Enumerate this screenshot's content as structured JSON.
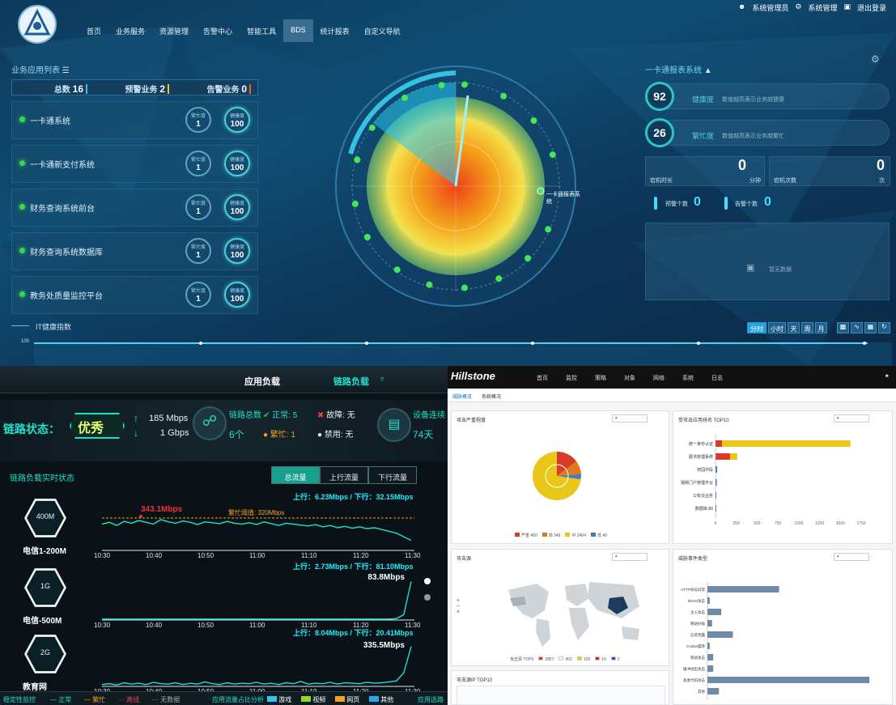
{
  "top": {
    "nav": [
      "首页",
      "业务服务",
      "资源管理",
      "告警中心",
      "智能工具",
      "BDS",
      "统计报表",
      "自定义导航"
    ],
    "nav_active": "BDS",
    "user": {
      "admin": "系统管理员",
      "settings": "系统管理",
      "logout": "退出登录"
    },
    "left_title": "业务应用列表",
    "summary": {
      "total_label": "总数",
      "total": "16",
      "warn_label": "预警业务",
      "warn": "2",
      "alarm_label": "告警业务",
      "alarm": "0"
    },
    "systems": [
      {
        "name": "一卡通系统",
        "busy_label": "繁忙度",
        "busy": "1",
        "health_label": "健康度",
        "health": "100"
      },
      {
        "name": "一卡通新支付系统",
        "busy_label": "繁忙度",
        "busy": "1",
        "health_label": "健康度",
        "health": "100"
      },
      {
        "name": "财务查询系统前台",
        "busy_label": "繁忙度",
        "busy": "1",
        "health_label": "健康度",
        "health": "100"
      },
      {
        "name": "财务查询系统数据库",
        "busy_label": "繁忙度",
        "busy": "1",
        "health_label": "健康度",
        "health": "100"
      },
      {
        "name": "教务处质量监控平台",
        "busy_label": "繁忙度",
        "busy": "1",
        "health_label": "健康度",
        "health": "100"
      }
    ],
    "radar_target_label": "一卡通报表系统",
    "right_title": "一卡通报表系统",
    "health": {
      "value": "92",
      "label": "健康度",
      "desc": "数值越高表示业务越健康"
    },
    "busy": {
      "value": "26",
      "label": "繁忙度",
      "desc": "数值越高表示业务越繁忙"
    },
    "downtime": {
      "label": "宕机时长",
      "value": "0",
      "unit": "分钟"
    },
    "downcount": {
      "label": "宕机次数",
      "value": "0",
      "unit": "次"
    },
    "warn_count": {
      "label": "预警个数",
      "value": "0"
    },
    "alarm_count": {
      "label": "告警个数",
      "value": "0"
    },
    "nodata": "暂无数据",
    "it_index": "IT健康指数",
    "it_axis": "100",
    "time_buttons": [
      "分时",
      "小时",
      "天",
      "周",
      "月"
    ]
  },
  "bl": {
    "tabs": {
      "app": "应用负载",
      "link": "链路负载"
    },
    "link_state_label": "链路状态：",
    "link_state_value": "优秀",
    "up_rate": "185 Mbps",
    "down_rate": "1 Gbps",
    "link_total_label": "链路总数",
    "link_total": "6个",
    "normal_label": "正常:",
    "normal": "5",
    "fault_label": "故障:",
    "fault": "无",
    "busy_label": "繁忙:",
    "busy": "1",
    "disabled_label": "禁用:",
    "disabled": "无",
    "device_label": "设备连续",
    "device_days": "74天",
    "realtime_title": "链路负载实时状态",
    "flow_tabs": [
      "总流量",
      "上行流量",
      "下行流量"
    ],
    "charts": [
      {
        "hex": "400M",
        "name": "电信1-200M",
        "rate": "上行：6.23Mbps / 下行：32.15Mbps",
        "peak": "343.1Mbps",
        "threshold": "繁忙阈值: 320Mbps",
        "values": [
          58,
          62,
          55,
          64,
          60,
          66,
          62,
          58,
          68,
          63,
          60,
          65,
          62,
          57,
          63,
          61,
          59,
          64,
          60,
          58,
          61,
          57,
          63,
          59,
          55,
          60,
          58,
          56,
          54,
          57,
          52,
          55,
          50,
          53,
          49,
          52,
          48,
          50,
          46,
          42,
          38,
          30,
          22
        ]
      },
      {
        "hex": "1G",
        "name": "电信-500M",
        "rate": "上行：2.73Mbps / 下行：81.10Mbps",
        "peak": "83.8Mbps",
        "values": [
          2,
          2,
          2,
          2,
          2,
          2,
          2,
          2,
          2,
          2,
          2,
          2,
          2,
          2,
          2,
          2,
          2,
          2,
          2,
          2,
          2,
          2,
          2,
          2,
          2,
          2,
          2,
          2,
          2,
          2,
          2,
          2,
          2,
          2,
          2,
          2,
          2,
          2,
          2,
          2,
          3,
          12,
          85
        ]
      },
      {
        "hex": "2G",
        "name": "教育网",
        "rate": "上行：8.04Mbps / 下行：20.41Mbps",
        "peak": "335.5Mbps",
        "values": [
          4,
          6,
          3,
          8,
          5,
          7,
          4,
          9,
          6,
          5,
          8,
          4,
          7,
          5,
          10,
          6,
          4,
          8,
          5,
          7,
          6,
          9,
          5,
          7,
          4,
          8,
          6,
          11,
          5,
          7,
          6,
          9,
          5,
          8,
          7,
          6,
          9,
          7,
          8,
          10,
          12,
          30,
          88
        ]
      }
    ],
    "x_ticks": [
      "10:30",
      "10:40",
      "10:50",
      "11:00",
      "11:10",
      "11:20",
      "11:30"
    ],
    "footer": {
      "monitor": "稳定性监控",
      "normal": "正常",
      "busy": "繁忙",
      "offline": "离线",
      "nodata": "无数据",
      "app_share": "应用流量占比分析",
      "game": "游戏",
      "video": "视频",
      "web": "网页",
      "other": "其他",
      "select": "应用选路"
    }
  },
  "br": {
    "brand": "Hillstone",
    "nav": [
      "首页",
      "监控",
      "策略",
      "对象",
      "网络",
      "系统",
      "日志"
    ],
    "tabs": [
      "威胁概览",
      "系统概况"
    ],
    "panel1": {
      "title": "攻击严重程度",
      "legend": [
        "严重 400",
        "高 349",
        "中 2404",
        "低 40"
      ]
    },
    "panel2": {
      "title": "受攻击应用排名 TOP10",
      "bars": [
        {
          "label": "统一身份认证",
          "value": 1620
        },
        {
          "label": "图书管理系统",
          "value": 260
        },
        {
          "label": "校园IP段",
          "value": 20
        },
        {
          "label": "视频门户管理平台",
          "value": 15
        },
        {
          "label": "公有云业务",
          "value": 10
        },
        {
          "label": "数据库-80",
          "value": 8
        }
      ],
      "axis": [
        "0",
        "250",
        "500",
        "750",
        "1000",
        "1250",
        "1500",
        "1750"
      ]
    },
    "panel3": {
      "title": "攻击源",
      "legend": [
        "攻击源 TOP5",
        "2857",
        "453",
        "109",
        "10",
        "2"
      ]
    },
    "panel4": {
      "title": "威胁事件类型",
      "bars": [
        {
          "label": "HTTP协议异常",
          "value": 62
        },
        {
          "label": "DDoS攻击",
          "value": 2
        },
        {
          "label": "注入攻击",
          "value": 12
        },
        {
          "label": "网站扫描",
          "value": 4
        },
        {
          "label": "信息泄露",
          "value": 22
        },
        {
          "label": "Cookie篡改",
          "value": 2
        },
        {
          "label": "跨站攻击",
          "value": 5
        },
        {
          "label": "缓冲溢出攻击",
          "value": 5
        },
        {
          "label": "恶意代码攻击",
          "value": 140
        },
        {
          "label": "其他",
          "value": 10
        }
      ]
    },
    "panel5": {
      "title": "攻击源IP TOP10"
    }
  }
}
